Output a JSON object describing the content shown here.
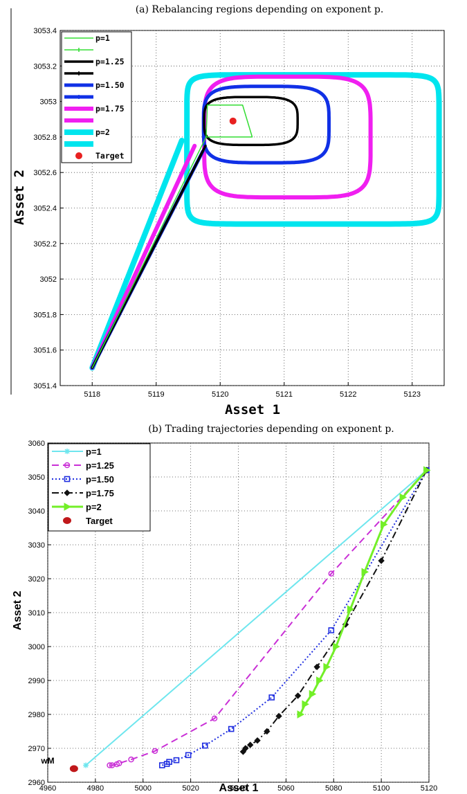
{
  "chart_data": [
    {
      "type": "line",
      "title": "(a) Rebalancing regions depending on exponent p.",
      "xlabel": "Asset 1",
      "ylabel": "Asset 2",
      "xlim": [
        5117.5,
        5123.5
      ],
      "ylim": [
        3051.4,
        3053.4
      ],
      "xticks": [
        5118,
        5119,
        5120,
        5121,
        5122,
        5123
      ],
      "yticks": [
        3051.4,
        3051.6,
        3051.8,
        3052,
        3052.2,
        3052.4,
        3052.6,
        3052.8,
        3053,
        3053.2,
        3053.4
      ],
      "xtick_labels": [
        "5118",
        "5119",
        "5120",
        "5121",
        "5122",
        "5123"
      ],
      "ytick_labels": [
        "3051.4",
        "3051.6",
        "3051.8",
        "3052",
        "3052.2",
        "3052.4",
        "3052.6",
        "3052.8",
        "3053",
        "3053.2",
        "3053.4"
      ],
      "grid": true,
      "legend": "top-left",
      "start_point": [
        5118.0,
        3051.5
      ],
      "target": {
        "name": "Target",
        "x": 5120.2,
        "y": 3052.89,
        "color": "#e82020"
      },
      "series": [
        {
          "name": "p=2",
          "color": "#00e5ee",
          "width": 8,
          "region": {
            "cx": 5121.45,
            "cy": 3052.73,
            "rx": 1.97,
            "ry": 0.42,
            "n": 12
          },
          "entry": [
            5119.4,
            3052.78
          ]
        },
        {
          "name": "p=1.75",
          "color": "#f01ff0",
          "width": 6,
          "region": {
            "cx": 5121.05,
            "cy": 3052.8,
            "rx": 1.3,
            "ry": 0.34,
            "n": 5
          },
          "entry": [
            5119.6,
            3052.75
          ]
        },
        {
          "name": "p=1.50",
          "color": "#1030e6",
          "width": 5,
          "region": {
            "cx": 5120.72,
            "cy": 3052.87,
            "rx": 0.98,
            "ry": 0.215,
            "n": 4.2
          },
          "entry": [
            5119.73,
            3052.72
          ]
        },
        {
          "name": "p=1.25",
          "color": "#000000",
          "width": 3.5,
          "region": {
            "cx": 5120.48,
            "cy": 3052.89,
            "rx": 0.73,
            "ry": 0.135,
            "n": 3.8
          },
          "entry": [
            5119.77,
            3052.75
          ]
        },
        {
          "name": "p=1",
          "color": "#33dd33",
          "width": 1.5,
          "polygon": [
            [
              5119.8,
              3052.98
            ],
            [
              5120.35,
              3052.98
            ],
            [
              5120.5,
              3052.8
            ],
            [
              5119.78,
              3052.8
            ]
          ],
          "entry": [
            5119.78,
            3052.8
          ]
        }
      ],
      "legend_entries": [
        "p=1",
        "",
        "p=1.25",
        "",
        "p=1.50",
        "",
        "p=1.75",
        "",
        "p=2",
        "",
        "Target"
      ]
    },
    {
      "type": "line",
      "title": "(b) Trading trajectories depending on exponent p.",
      "xlabel": "Asset 1",
      "ylabel": "Asset 2",
      "xlim": [
        4960,
        5120
      ],
      "ylim": [
        2960,
        3060
      ],
      "xticks": [
        4960,
        4980,
        5000,
        5020,
        5040,
        5060,
        5080,
        5100,
        5120
      ],
      "yticks": [
        2960,
        2970,
        2980,
        2990,
        3000,
        3010,
        3020,
        3030,
        3040,
        3050,
        3060
      ],
      "grid": true,
      "legend": "top-left",
      "annotation": {
        "text": "wM",
        "x": 4963,
        "y": 2965.5
      },
      "target": {
        "name": "Target",
        "x": 4971,
        "y": 2964,
        "color": "#c0181a"
      },
      "series": [
        {
          "name": "p=1",
          "color": "#6ee6ee",
          "dash": "",
          "marker": "star",
          "x": [
            4976,
            5119
          ],
          "y": [
            2965,
            3052
          ]
        },
        {
          "name": "p=1.25",
          "color": "#c92fd6",
          "dash": "10,6",
          "marker": "circle",
          "x": [
            4986,
            4987,
            4989,
            4990,
            4995,
            5005,
            5030,
            5079,
            5119
          ],
          "y": [
            2965,
            2965,
            2965.3,
            2965.6,
            2966.7,
            2969.2,
            2978.8,
            3021.5,
            3052
          ]
        },
        {
          "name": "p=1.50",
          "color": "#1f2ee0",
          "dash": "2,3",
          "marker": "square",
          "x": [
            5008,
            5010,
            5011,
            5014,
            5019,
            5026,
            5037,
            5054,
            5079,
            5119
          ],
          "y": [
            2965,
            2965.4,
            2966,
            2966.5,
            2968,
            2970.8,
            2975.7,
            2985,
            3004.8,
            3052
          ]
        },
        {
          "name": "p=1.75",
          "color": "#111111",
          "dash": "10,4,2,4",
          "marker": "diamond",
          "x": [
            5042,
            5043,
            5045,
            5048,
            5052,
            5057,
            5065,
            5073,
            5085,
            5100,
            5119
          ],
          "y": [
            2969,
            2970,
            2971,
            2972.3,
            2975,
            2979.5,
            2985.5,
            2994,
            3006.5,
            3025.3,
            3052
          ]
        },
        {
          "name": "p=2",
          "color": "#73ef28",
          "dash": "",
          "marker": "triangle-right",
          "x": [
            5066,
            5068,
            5071,
            5074,
            5077,
            5081,
            5087,
            5093,
            5101,
            5109,
            5119
          ],
          "y": [
            2980,
            2983,
            2986,
            2990,
            2994,
            3000,
            3011,
            3022,
            3036,
            3044,
            3052
          ]
        }
      ],
      "legend_entries": [
        "p=1",
        "p=1.25",
        "p=1.50",
        "p=1.75",
        "p=2",
        "Target"
      ]
    }
  ]
}
